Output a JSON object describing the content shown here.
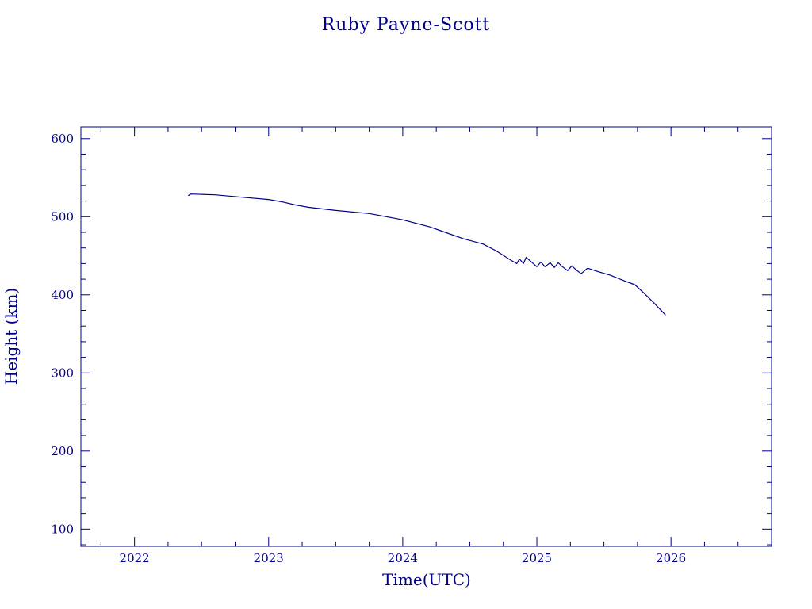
{
  "chart_data": {
    "type": "line",
    "title": "Ruby Payne-Scott",
    "xlabel": "Time(UTC)",
    "ylabel": "Height (km)",
    "color": "#00008b",
    "xlim": [
      2021.6,
      2026.75
    ],
    "ylim": [
      78,
      615
    ],
    "x_ticks": [
      2022,
      2023,
      2024,
      2025,
      2026
    ],
    "x_tick_labels": [
      "2022",
      "2023",
      "2024",
      "2025",
      "2026"
    ],
    "y_ticks": [
      100,
      200,
      300,
      400,
      500,
      600
    ],
    "y_tick_labels": [
      "100",
      "200",
      "300",
      "400",
      "500",
      "600"
    ],
    "x_minor_step": 0.25,
    "y_minor_step": 20,
    "grid": false,
    "series": [
      {
        "name": "",
        "x": [
          2022.4,
          2022.42,
          2022.6,
          2022.8,
          2023.0,
          2023.1,
          2023.2,
          2023.3,
          2023.5,
          2023.75,
          2024.0,
          2024.2,
          2024.3,
          2024.45,
          2024.6,
          2024.7,
          2024.8,
          2024.85,
          2024.87,
          2024.9,
          2024.92,
          2024.96,
          2025.0,
          2025.03,
          2025.06,
          2025.1,
          2025.13,
          2025.16,
          2025.19,
          2025.23,
          2025.26,
          2025.3,
          2025.33,
          2025.37,
          2025.38,
          2025.45,
          2025.55,
          2025.65,
          2025.73,
          2025.8,
          2025.87,
          2025.96
        ],
        "y": [
          527,
          529,
          528,
          525,
          522,
          519,
          515,
          512,
          508,
          504,
          496,
          487,
          481,
          472,
          465,
          456,
          445,
          440,
          446,
          440,
          448,
          442,
          436,
          442,
          436,
          441,
          435,
          441,
          436,
          431,
          437,
          431,
          427,
          433,
          434,
          430,
          425,
          418,
          413,
          402,
          390,
          374
        ]
      }
    ]
  }
}
